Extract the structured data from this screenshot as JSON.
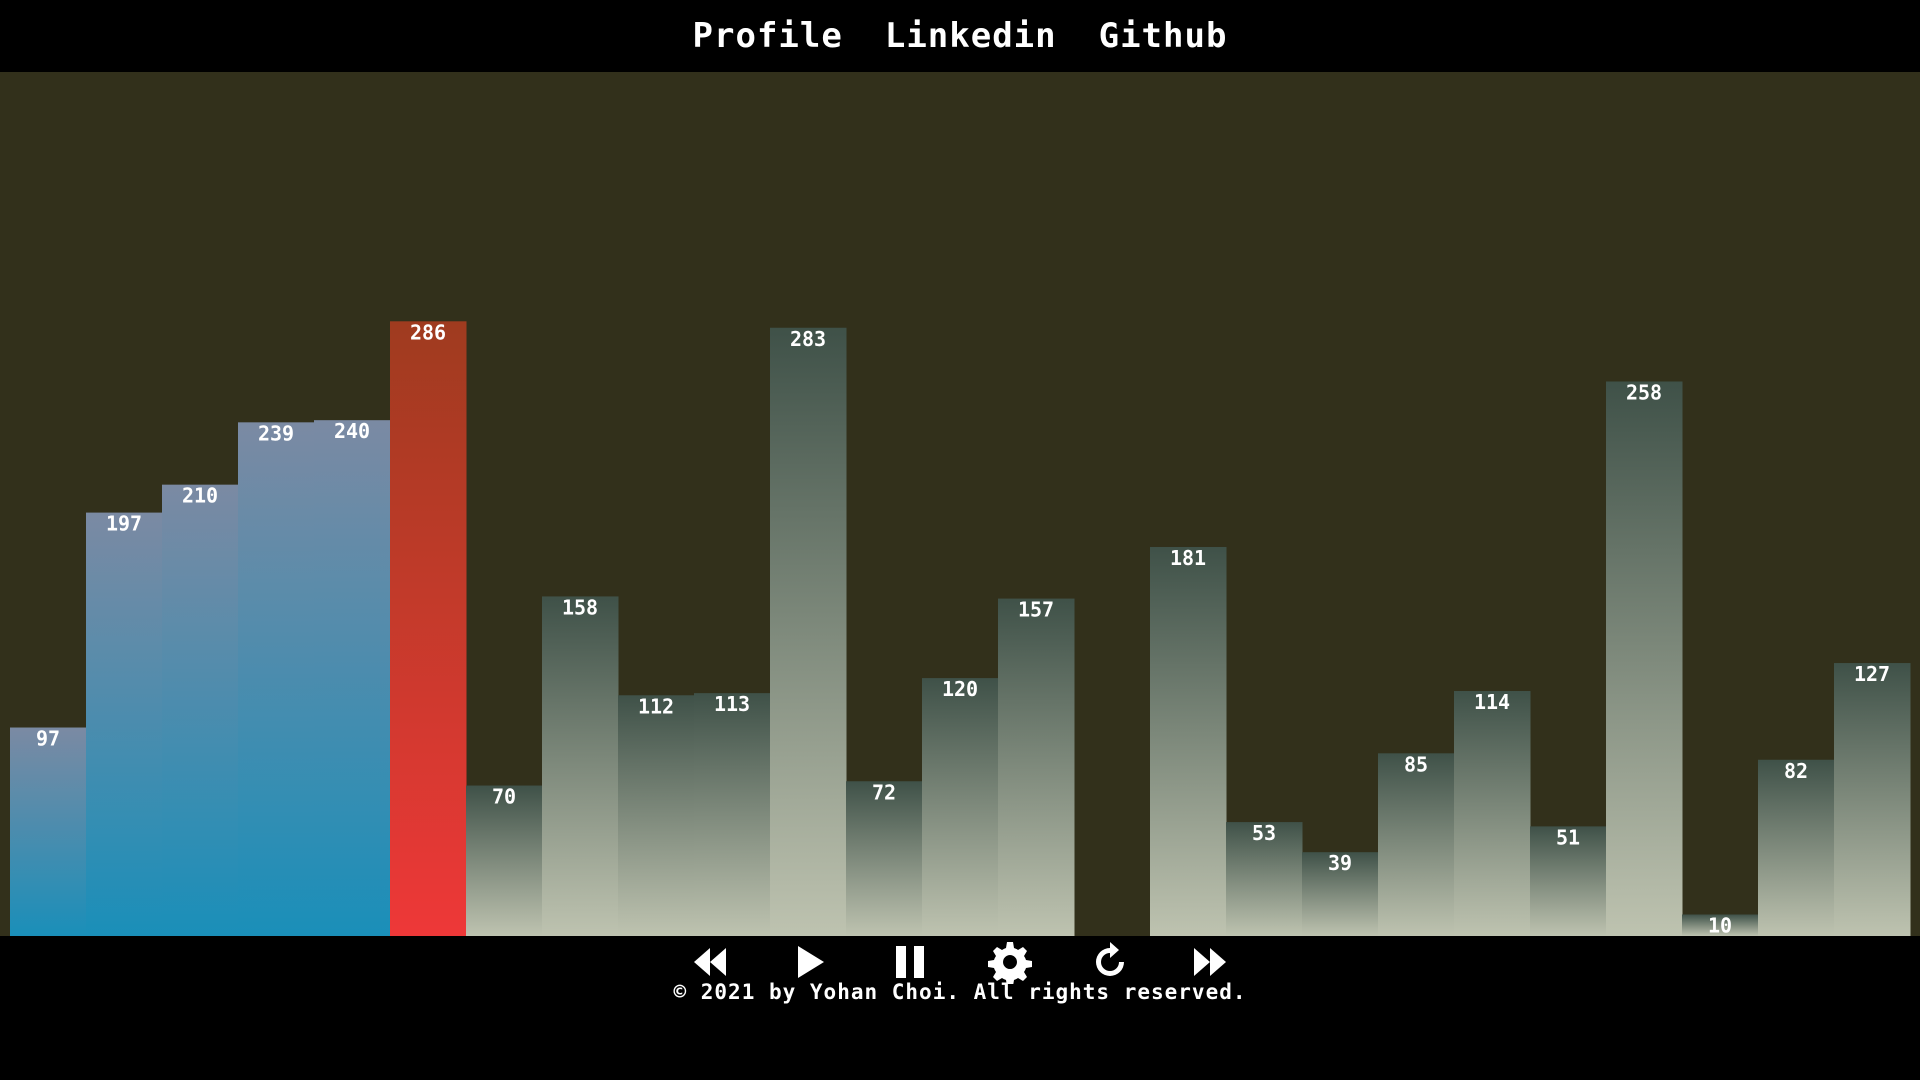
{
  "nav": {
    "profile": "Profile",
    "linkedin": "Linkedin",
    "github": "Github"
  },
  "controls": {
    "rewind": "rewind-icon",
    "play": "play-icon",
    "pause": "pause-icon",
    "settings": "gear-icon",
    "reset": "refresh-icon",
    "fast_forward": "fast-forward-icon"
  },
  "footer": {
    "copyright": "© 2021 by Yohan Choi. All rights reserved."
  },
  "colors": {
    "background": "#32301b",
    "page": "#000000",
    "sorted_top": "#7b8aa3",
    "sorted_bottom": "#1a8fb9",
    "active_top": "#9f3b1f",
    "active_bottom": "#ee3838",
    "unsorted_top": "#3f5148",
    "unsorted_bottom": "#bec3b0"
  },
  "chart_data": {
    "type": "bar",
    "values": [
      97,
      197,
      210,
      239,
      240,
      286,
      70,
      158,
      112,
      113,
      283,
      72,
      120,
      157,
      0,
      181,
      53,
      39,
      85,
      114,
      51,
      258,
      10,
      82,
      127
    ],
    "states": [
      "sorted",
      "sorted",
      "sorted",
      "sorted",
      "sorted",
      "active",
      "unsorted",
      "unsorted",
      "unsorted",
      "unsorted",
      "unsorted",
      "unsorted",
      "unsorted",
      "unsorted",
      "unsorted",
      "unsorted",
      "unsorted",
      "unsorted",
      "unsorted",
      "unsorted",
      "unsorted",
      "unsorted",
      "unsorted",
      "unsorted",
      "unsorted"
    ],
    "labels": [
      "97",
      "197",
      "210",
      "239",
      "240",
      "286",
      "70",
      "158",
      "112",
      "113",
      "283",
      "72",
      "120",
      "157",
      "",
      "181",
      "53",
      "39",
      "85",
      "114",
      "51",
      "258",
      "10",
      "82",
      "127"
    ],
    "ylim": [
      0,
      402
    ],
    "grid": false
  }
}
